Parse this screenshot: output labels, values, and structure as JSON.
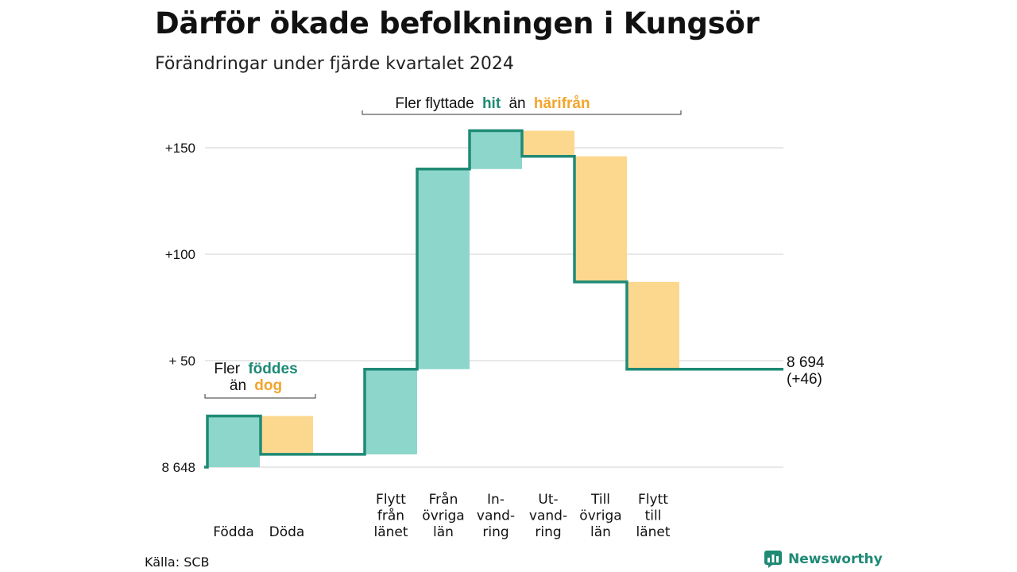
{
  "title": "Därför ökade befolkningen i Kungsör",
  "subtitle": "Förändringar under fjärde kvartalet 2024",
  "source": "Källa: SCB",
  "brand": {
    "name": "Newsworthy",
    "icon": "newsworthy-logo-icon"
  },
  "colors": {
    "increase": "#8dd6cc",
    "decrease": "#fcd88e",
    "line": "#1f8a76",
    "highlight_in": "#1f8a76",
    "highlight_out": "#f2a52c",
    "grid": "#d9d9d9"
  },
  "annotations": {
    "migration": {
      "pre": "Fler flyttade",
      "hl1": "hit",
      "mid": "än",
      "hl2": "härifrån"
    },
    "natural": {
      "line1_pre": "Fler",
      "line1_hl": "föddes",
      "line2_pre": "än",
      "line2_hl": "dog"
    }
  },
  "end_label": {
    "total": "8 694",
    "change": "(+46)"
  },
  "chart_data": {
    "type": "waterfall",
    "title": "Därför ökade befolkningen i Kungsör",
    "subtitle": "Förändringar under fjärde kvartalet 2024",
    "baseline": 8648,
    "final": 8694,
    "net_change": 46,
    "y_ticks": [
      {
        "value": 0,
        "label": "8 648"
      },
      {
        "value": 50,
        "label": "+ 50"
      },
      {
        "value": 100,
        "label": "+100"
      },
      {
        "value": 150,
        "label": "+150"
      }
    ],
    "ylim": [
      0,
      160
    ],
    "grid": true,
    "steps": [
      {
        "category": [
          "Födda"
        ],
        "change": 24,
        "direction": "increase"
      },
      {
        "category": [
          "Döda"
        ],
        "change": -18,
        "direction": "decrease"
      },
      {
        "category": [
          "Flytt",
          "från",
          "länet"
        ],
        "change": 40,
        "direction": "increase"
      },
      {
        "category": [
          "Från",
          "övriga",
          "län"
        ],
        "change": 94,
        "direction": "increase"
      },
      {
        "category": [
          "In-",
          "vand-",
          "ring"
        ],
        "change": 18,
        "direction": "increase"
      },
      {
        "category": [
          "Ut-",
          "vand-",
          "ring"
        ],
        "change": -12,
        "direction": "decrease"
      },
      {
        "category": [
          "Till",
          "övriga",
          "län"
        ],
        "change": -59,
        "direction": "decrease"
      },
      {
        "category": [
          "Flytt",
          "till",
          "länet"
        ],
        "change": -41,
        "direction": "decrease"
      }
    ]
  }
}
